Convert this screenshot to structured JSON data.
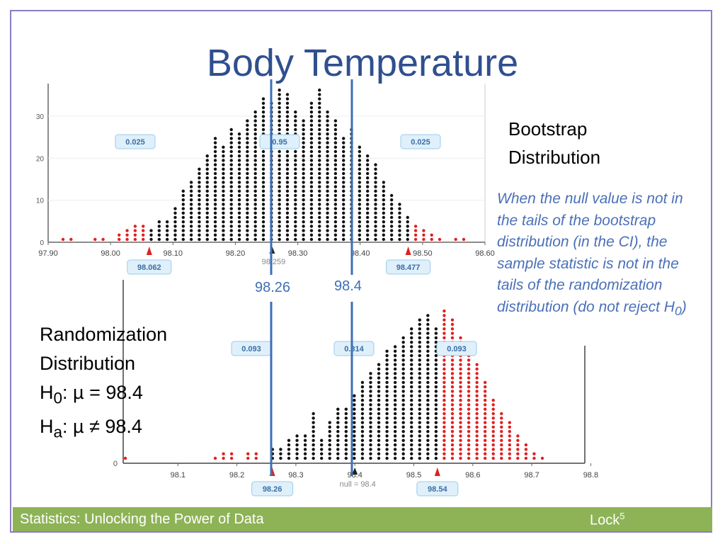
{
  "slide": {
    "title": "Body Temperature",
    "bootstrap_label_line1": "Bootstrap",
    "bootstrap_label_line2": "Distribution",
    "note_text": "When the null value is not in the tails of the bootstrap distribution (in the CI), the sample statistic is not in the tails of the randomization distribution (do not reject ",
    "note_h0": "H",
    "note_h0_sub": "0",
    "note_close": ")",
    "rand_label_line1": "Randomization",
    "rand_label_line2": "Distribution",
    "h0_prefix": "H",
    "h0_sub": "0",
    "h0_rest": ": µ = 98.4",
    "ha_prefix": "H",
    "ha_sub": "a",
    "ha_rest": ": µ ≠ 98.4",
    "value_label_1": "98.26",
    "value_label_2": "98.4",
    "footer_left": "Statistics: Unlocking the Power of Data",
    "footer_right": "Lock",
    "footer_right_sup": "5",
    "colors": {
      "title": "#2f4f8f",
      "accent_blue": "#4a70b8",
      "footer": "#8db356",
      "tail": "#e02020",
      "frame": "#8e7cc3"
    }
  },
  "chart_data": [
    {
      "type": "dotplot",
      "ticks": [
        "97.90",
        "98.00",
        "98.10",
        "98.20",
        "98.30",
        "98.40",
        "98.50",
        "98.60"
      ],
      "y_ticks": [
        "0",
        "10",
        "20",
        "30"
      ],
      "ylim": [
        0,
        35
      ],
      "xlim": [
        97.9,
        98.6
      ],
      "proportion_labels": [
        "0.025",
        "0.95",
        "0.025"
      ],
      "lower_cutoff": "98.062",
      "upper_cutoff": "98.477",
      "center_label": "98.259",
      "heights": [
        1,
        1,
        0,
        0,
        1,
        1,
        0,
        2,
        3,
        4,
        4,
        3,
        5,
        5,
        8,
        12,
        14,
        17,
        20,
        24,
        22,
        26,
        25,
        28,
        30,
        33,
        32,
        35,
        34,
        30,
        28,
        32,
        35,
        30,
        28,
        24,
        26,
        22,
        20,
        18,
        14,
        11,
        9,
        6,
        4,
        3,
        2,
        1,
        0,
        1,
        1
      ]
    },
    {
      "type": "dotplot",
      "ticks": [
        "98.1",
        "98.2",
        "98.3",
        "98.4",
        "98.5",
        "98.6",
        "98.7",
        "98.8"
      ],
      "y_ticks": [
        "0"
      ],
      "xlim": [
        98.0,
        98.8
      ],
      "proportion_labels": [
        "0.093",
        "0.814",
        "0.093"
      ],
      "lower_cutoff": "98.26",
      "upper_cutoff": "98.54",
      "null_label": "null = 98.4",
      "heights": [
        1,
        0,
        0,
        0,
        0,
        0,
        0,
        0,
        0,
        0,
        0,
        1,
        2,
        2,
        0,
        2,
        2,
        0,
        3,
        3,
        5,
        6,
        6,
        11,
        5,
        9,
        12,
        12,
        15,
        18,
        20,
        22,
        25,
        26,
        28,
        30,
        32,
        33,
        30,
        34,
        32,
        28,
        26,
        22,
        18,
        14,
        11,
        9,
        6,
        4,
        2,
        1
      ]
    }
  ]
}
